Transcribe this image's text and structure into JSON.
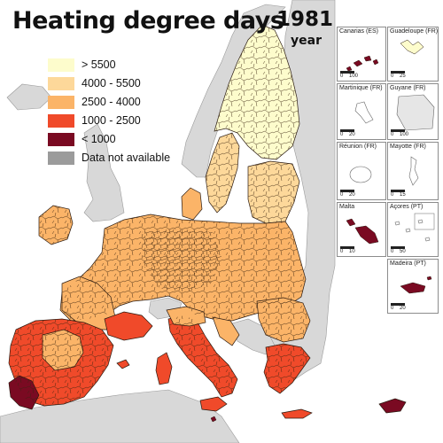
{
  "title": "Heating degree days",
  "year": "1981",
  "year_label": "year",
  "legend": [
    {
      "label": "> 5500",
      "color": "#fdfccc"
    },
    {
      "label": "4000 - 5500",
      "color": "#fdd89a"
    },
    {
      "label": "2500 - 4000",
      "color": "#fbb468"
    },
    {
      "label": "1000 - 2500",
      "color": "#f04a2a"
    },
    {
      "label": "< 1000",
      "color": "#7a0a22"
    },
    {
      "label": "Data not available",
      "color": "#9b9b9b"
    }
  ],
  "colors": {
    "sea": "#ffffff",
    "non_eu_land": "#d8d8d8",
    "borders": "#2a1a10"
  },
  "insets": [
    {
      "label": "Canarias (ES)",
      "scale_end": "100"
    },
    {
      "label": "Guadeloupe (FR)",
      "scale_end": "25"
    },
    {
      "label": "Martinique (FR)",
      "scale_end": "20"
    },
    {
      "label": "Guyane (FR)",
      "scale_end": "100"
    },
    {
      "label": "Réunion (FR)",
      "scale_end": "20"
    },
    {
      "label": "Mayotte (FR)",
      "scale_end": "15"
    },
    {
      "label": "Malta",
      "scale_end": "10"
    },
    {
      "label": "Açores (PT)",
      "scale_end": "50"
    },
    {
      "label": "Madeira (PT)",
      "scale_end": "20"
    }
  ],
  "scale_start": "0"
}
